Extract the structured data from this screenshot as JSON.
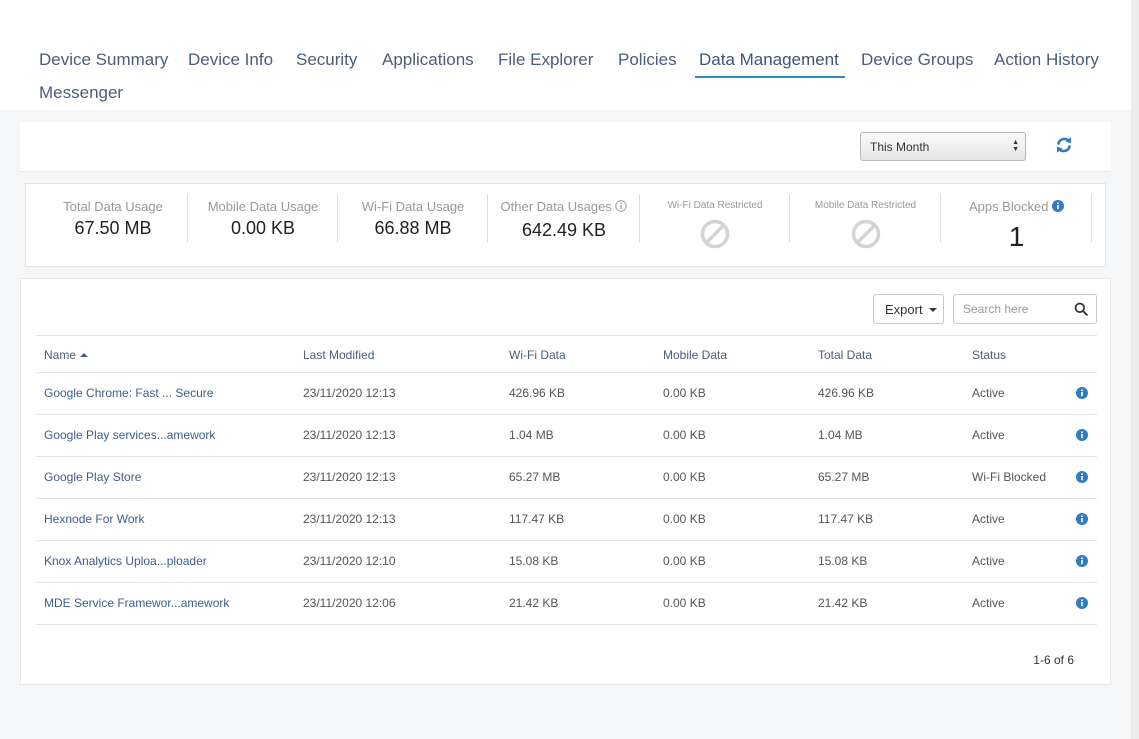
{
  "tabs": [
    {
      "label": "Device Summary"
    },
    {
      "label": "Device Info"
    },
    {
      "label": "Security"
    },
    {
      "label": "Applications"
    },
    {
      "label": "File Explorer"
    },
    {
      "label": "Policies"
    },
    {
      "label": "Data Management"
    },
    {
      "label": "Device Groups"
    },
    {
      "label": "Action History"
    },
    {
      "label": "Messenger"
    }
  ],
  "active_tab": "Data Management",
  "filter": {
    "period": "This Month"
  },
  "stats": {
    "total": {
      "label": "Total Data Usage",
      "value": "67.50 MB"
    },
    "mobile": {
      "label": "Mobile Data Usage",
      "value": "0.00 KB"
    },
    "wifi": {
      "label": "Wi-Fi Data Usage",
      "value": "66.88 MB"
    },
    "other": {
      "label": "Other Data Usages",
      "value": "642.49 KB"
    },
    "wifi_restricted": {
      "label": "Wi-Fi Data Restricted"
    },
    "mobile_restricted": {
      "label": "Mobile Data Restricted"
    },
    "apps_blocked": {
      "label": "Apps Blocked",
      "value": "1"
    }
  },
  "toolbar": {
    "export_label": "Export",
    "search_placeholder": "Search here"
  },
  "table": {
    "headers": {
      "name": "Name",
      "last_modified": "Last Modified",
      "wifi": "Wi-Fi Data",
      "mobile": "Mobile Data",
      "total": "Total Data",
      "status": "Status"
    },
    "rows": [
      {
        "name": "Google Chrome: Fast ... Secure",
        "last_modified": "23/11/2020 12:13",
        "wifi": "426.96 KB",
        "mobile": "0.00 KB",
        "total": "426.96 KB",
        "status": "Active"
      },
      {
        "name": "Google Play services...amework",
        "last_modified": "23/11/2020 12:13",
        "wifi": "1.04 MB",
        "mobile": "0.00 KB",
        "total": "1.04 MB",
        "status": "Active"
      },
      {
        "name": "Google Play Store",
        "last_modified": "23/11/2020 12:13",
        "wifi": "65.27 MB",
        "mobile": "0.00 KB",
        "total": "65.27 MB",
        "status": "Wi-Fi Blocked"
      },
      {
        "name": "Hexnode For Work",
        "last_modified": "23/11/2020 12:13",
        "wifi": "117.47 KB",
        "mobile": "0.00 KB",
        "total": "117.47 KB",
        "status": "Active"
      },
      {
        "name": "Knox Analytics Uploa...ploader",
        "last_modified": "23/11/2020 12:10",
        "wifi": "15.08 KB",
        "mobile": "0.00 KB",
        "total": "15.08 KB",
        "status": "Active"
      },
      {
        "name": "MDE Service Framewor...amework",
        "last_modified": "23/11/2020 12:06",
        "wifi": "21.42 KB",
        "mobile": "0.00 KB",
        "total": "21.42 KB",
        "status": "Active"
      }
    ]
  },
  "pagination": {
    "text": "1-6 of 6"
  },
  "colors": {
    "accent": "#2f88c6",
    "link": "#3d5d8a",
    "tab_text": "#4a5e7a",
    "info_icon": "#2f7cc1"
  }
}
